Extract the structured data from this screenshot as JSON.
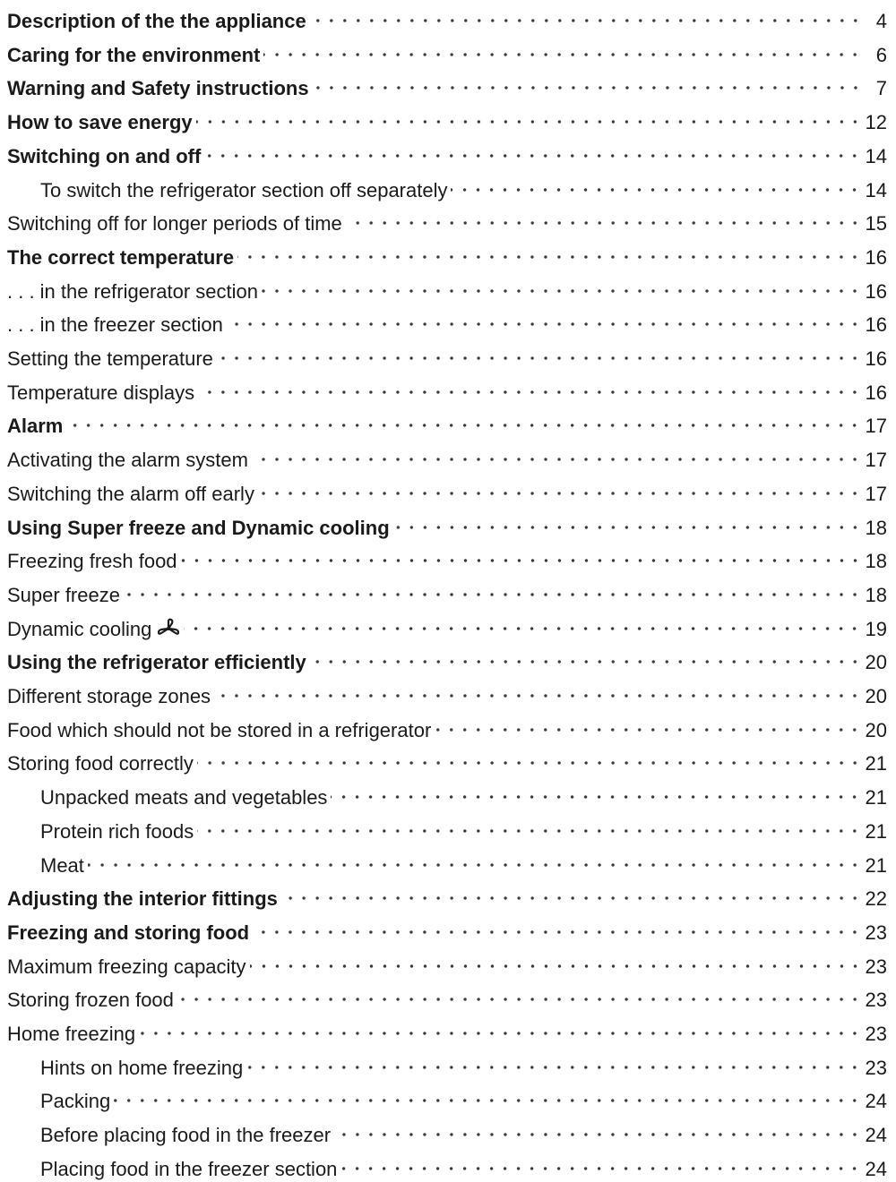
{
  "entries": [
    {
      "label": "Description of the the appliance",
      "page": "4",
      "level": 1
    },
    {
      "label": "Caring for the environment",
      "page": "6",
      "level": 1
    },
    {
      "label": "Warning and Safety instructions",
      "page": "7",
      "level": 1
    },
    {
      "label": "How to save energy",
      "page": "12",
      "level": 1
    },
    {
      "label": "Switching on and off",
      "page": "14",
      "level": 1
    },
    {
      "label": "To switch the refrigerator section off separately",
      "page": "14",
      "level": 3
    },
    {
      "label": "Switching off for longer periods of time",
      "page": "15",
      "level": 2
    },
    {
      "label": "The correct temperature",
      "page": "16",
      "level": 1
    },
    {
      "label": ". . . in the refrigerator section",
      "page": "16",
      "level": 2
    },
    {
      "label": ". . . in the freezer section",
      "page": "16",
      "level": 2
    },
    {
      "label": "Setting the temperature",
      "page": "16",
      "level": 2
    },
    {
      "label": "Temperature displays",
      "page": "16",
      "level": 2
    },
    {
      "label": "Alarm",
      "page": "17",
      "level": 1
    },
    {
      "label": "Activating the alarm system",
      "page": "17",
      "level": 2
    },
    {
      "label": "Switching the alarm off early",
      "page": "17",
      "level": 2
    },
    {
      "label": "Using Super freeze and Dynamic cooling",
      "page": "18",
      "level": 1
    },
    {
      "label": "Freezing fresh food",
      "page": "18",
      "level": 2
    },
    {
      "label": "Super freeze",
      "page": "18",
      "level": 2
    },
    {
      "label": "Dynamic cooling",
      "page": "19",
      "level": 2,
      "icon": "fan-icon"
    },
    {
      "label": "Using the refrigerator efficiently",
      "page": "20",
      "level": 1
    },
    {
      "label": "Different storage zones",
      "page": "20",
      "level": 2
    },
    {
      "label": "Food which should not be stored in a refrigerator",
      "page": "20",
      "level": 2
    },
    {
      "label": "Storing food correctly",
      "page": "21",
      "level": 2
    },
    {
      "label": "Unpacked meats and vegetables",
      "page": "21",
      "level": 3
    },
    {
      "label": "Protein rich foods",
      "page": "21",
      "level": 3
    },
    {
      "label": "Meat",
      "page": "21",
      "level": 3
    },
    {
      "label": "Adjusting the interior fittings",
      "page": "22",
      "level": 1
    },
    {
      "label": "Freezing and storing food",
      "page": "23",
      "level": 1
    },
    {
      "label": "Maximum freezing capacity",
      "page": "23",
      "level": 2
    },
    {
      "label": "Storing frozen food",
      "page": "23",
      "level": 2
    },
    {
      "label": "Home freezing",
      "page": "23",
      "level": 2
    },
    {
      "label": "Hints on home freezing",
      "page": "23",
      "level": 3
    },
    {
      "label": "Packing",
      "page": "24",
      "level": 3
    },
    {
      "label": "Before placing food in the freezer",
      "page": "24",
      "level": 3
    },
    {
      "label": "Placing food in the freezer section",
      "page": "24",
      "level": 3
    }
  ]
}
